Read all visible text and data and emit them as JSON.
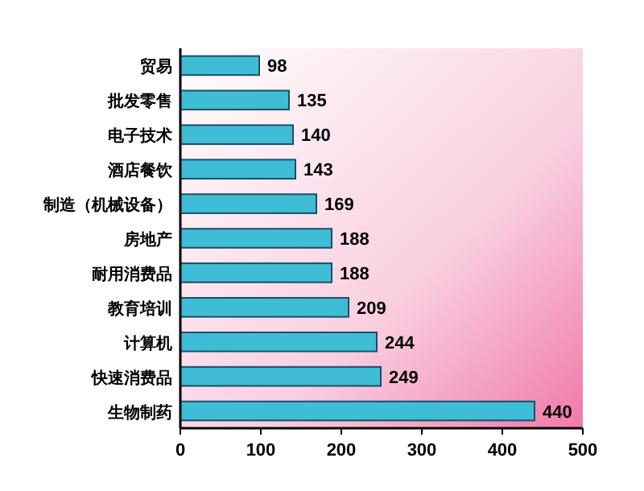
{
  "chart_data": {
    "type": "bar",
    "orientation": "horizontal",
    "categories": [
      "贸易",
      "批发零售",
      "电子技术",
      "酒店餐饮",
      "制造（机械设备）",
      "房地产",
      "耐用消费品",
      "教育培训",
      "计算机",
      "快速消费品",
      "生物制药"
    ],
    "values": [
      98,
      135,
      140,
      143,
      169,
      188,
      188,
      209,
      244,
      249,
      440
    ],
    "color": "#3fbcd6",
    "xlim": [
      0,
      500
    ],
    "xticks": [
      0,
      100,
      200,
      300,
      400,
      500
    ],
    "data_labels": true,
    "grid": false
  }
}
